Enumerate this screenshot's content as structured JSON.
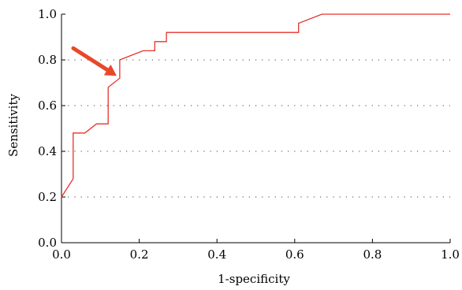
{
  "chart_data": {
    "type": "line",
    "xlabel": "1-specificity",
    "ylabel": "Sensitivity",
    "xlim": [
      0.0,
      1.0
    ],
    "ylim": [
      0.0,
      1.0
    ],
    "x_ticks": [
      "0.0",
      "0.2",
      "0.4",
      "0.6",
      "0.8",
      "1.0"
    ],
    "y_ticks": [
      "0.0",
      "0.2",
      "0.4",
      "0.6",
      "0.8",
      "1.0"
    ],
    "grid": "horizontal dotted",
    "series": [
      {
        "color": "#e8322b",
        "x": [
          0.0,
          0.03,
          0.03,
          0.06,
          0.09,
          0.09,
          0.12,
          0.12,
          0.15,
          0.15,
          0.15,
          0.21,
          0.24,
          0.24,
          0.27,
          0.27,
          0.61,
          0.61,
          0.67,
          1.0
        ],
        "y": [
          0.2,
          0.28,
          0.48,
          0.48,
          0.52,
          0.52,
          0.52,
          0.68,
          0.72,
          0.76,
          0.8,
          0.84,
          0.84,
          0.88,
          0.88,
          0.92,
          0.92,
          0.96,
          1.0,
          1.0
        ]
      }
    ],
    "annotation": {
      "type": "arrow",
      "color": "#e8482b",
      "target": [
        0.15,
        0.72
      ],
      "direction": "from upper-left"
    }
  }
}
